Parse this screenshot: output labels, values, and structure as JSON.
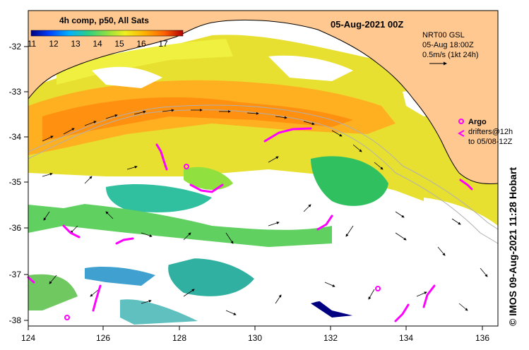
{
  "title": "05-Aug-2021 00Z",
  "legend": {
    "title": "4h comp, p50, All Sats",
    "ticks": [
      "11",
      "12",
      "13",
      "14",
      "15",
      "16",
      "17"
    ],
    "colors": [
      "#000080",
      "#0040ff",
      "#00b0ff",
      "#30d080",
      "#90e040",
      "#f0f020",
      "#ffb000",
      "#ff6000",
      "#b00000"
    ]
  },
  "current_info": {
    "lines": [
      "NRT00 GSL",
      "05-Aug 18:00Z",
      "0.5m/s (1kt 24h)"
    ]
  },
  "argo": {
    "label": "Argo",
    "drifter_lines": [
      "drifters@12h",
      "to 05/08-12Z"
    ],
    "color": "#ff00ff"
  },
  "land_color": "#ffc890",
  "axes": {
    "x_ticks": [
      "124",
      "126",
      "128",
      "130",
      "132",
      "134",
      "136"
    ],
    "y_ticks": [
      "-32",
      "-33",
      "-34",
      "-35",
      "-36",
      "-37",
      "-38"
    ]
  },
  "credit": "© IMOS 09-Aug-2021 11:28 Hobart"
}
